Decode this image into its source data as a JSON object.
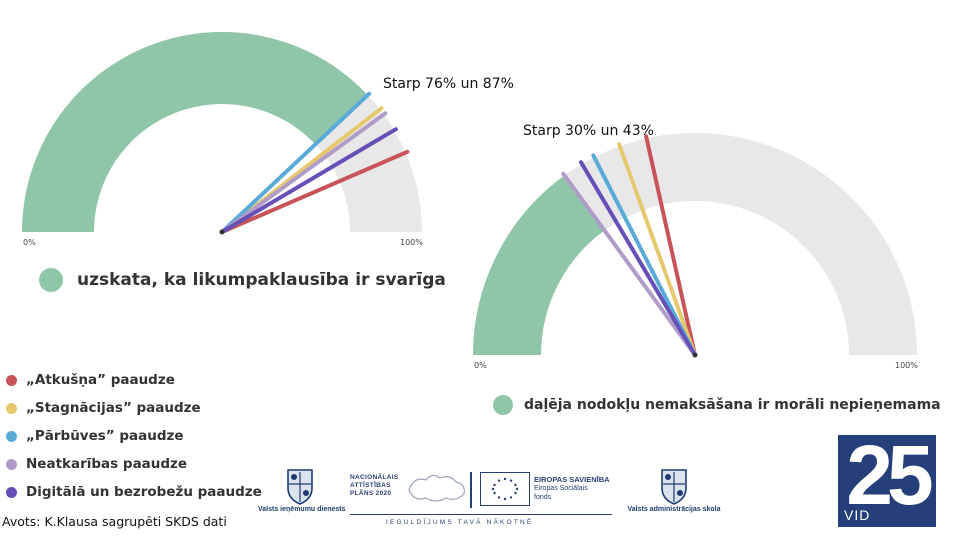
{
  "chart_data": [
    {
      "type": "gauge",
      "title": "uzskata, ka likumpaklausība ir svarīga",
      "annotation": "Starp 76% un 87%",
      "axis_min_label": "0%",
      "axis_max_label": "100%",
      "ylim": [
        0,
        100
      ],
      "filled_value": 76,
      "series": [
        {
          "name": "„Atkušņa” paaudze",
          "value": 87
        },
        {
          "name": "„Stagnācijas” paaudze",
          "value": 79
        },
        {
          "name": "„Pārbūves” paaudze",
          "value": 76
        },
        {
          "name": "Neatkarības paaudze",
          "value": 80
        },
        {
          "name": "Digitālā un bezrobežu paaudze",
          "value": 83
        }
      ]
    },
    {
      "type": "gauge",
      "title": "daļēja nodokļu nemaksāšana ir morāli nepieņemama",
      "annotation": "Starp 30% un 43%",
      "axis_min_label": "0%",
      "axis_max_label": "100%",
      "ylim": [
        0,
        100
      ],
      "filled_value": 30,
      "series": [
        {
          "name": "„Atkušņa” paaudze",
          "value": 43
        },
        {
          "name": "„Stagnācijas” paaudze",
          "value": 39
        },
        {
          "name": "„Pārbūves” paaudze",
          "value": 35
        },
        {
          "name": "Neatkarības paaudze",
          "value": 30
        },
        {
          "name": "Digitālā un bezrobežu paaudze",
          "value": 33
        }
      ]
    }
  ],
  "legend": [
    {
      "label": "„Atkušņa” paaudze",
      "color": "#c8545a"
    },
    {
      "label": "„Stagnācijas” paaudze",
      "color": "#e6c86e"
    },
    {
      "label": "„Pārbūves” paaudze",
      "color": "#5aaad8"
    },
    {
      "label": "Neatkarības paaudze",
      "color": "#b09cc8"
    },
    {
      "label": "Digitālā un bezrobežu paaudze",
      "color": "#6650b8"
    }
  ],
  "colors": {
    "filled": "#8fc5a8",
    "empty": "#e8e8e8"
  },
  "source": "Avots: K.Klausa sagrupēti SKDS dati",
  "logos": {
    "vid_caption": "Valsts ieņēmumu dienests",
    "na_lines": [
      "NACIONĀLAIS",
      "ATTĪSTĪBAS",
      "PLĀNS 2020"
    ],
    "eu_title": "EIROPAS SAVIENĪBA",
    "eu_fund_lines": [
      "Eiropas Sociālais",
      "fonds"
    ],
    "tagline": "IEGULDĪJUMS TAVĀ NĀKOTNĒ",
    "school_caption": "Valsts administrācijas skola",
    "vid25_number": "25",
    "vid25_text": "VID"
  }
}
